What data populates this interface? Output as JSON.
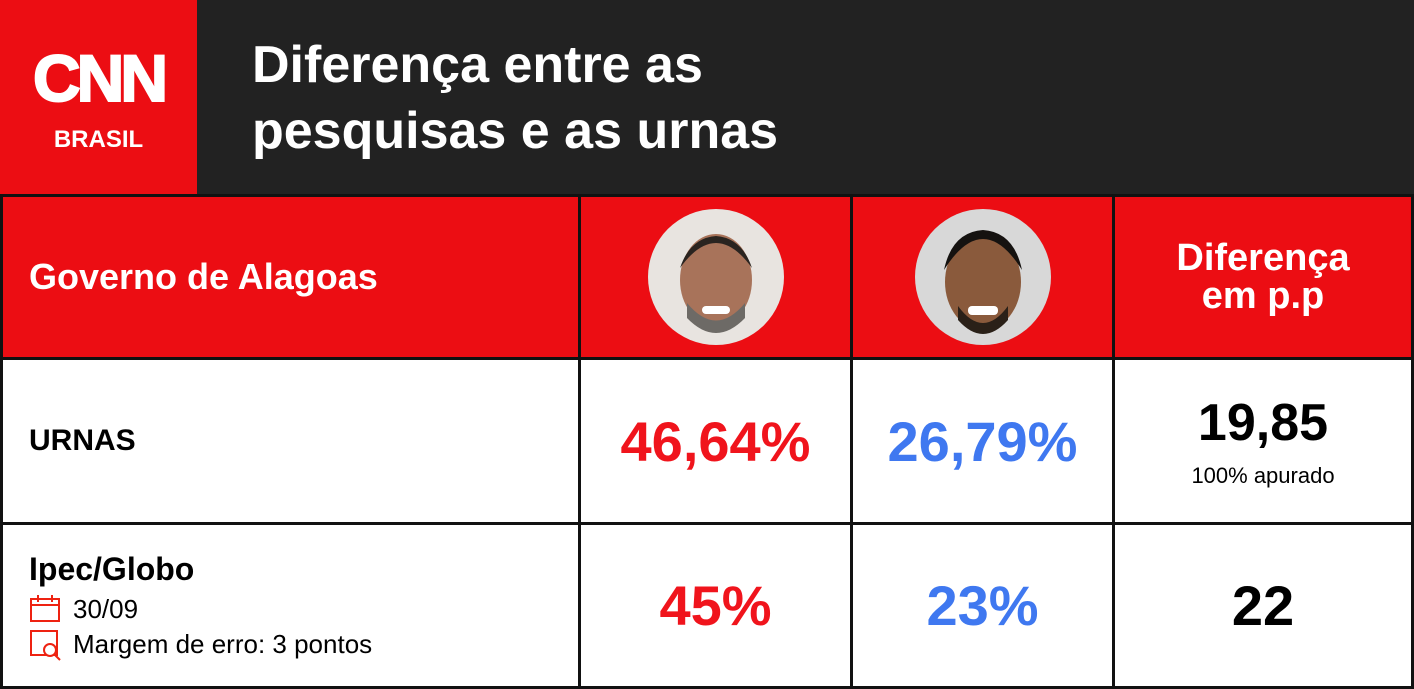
{
  "header": {
    "logo": {
      "brand": "CNN",
      "region": "BRASIL"
    },
    "title_lines": [
      "Diferença entre as",
      "pesquisas e as urnas"
    ]
  },
  "table": {
    "header": {
      "label": "Governo de Alagoas",
      "difference_lines": [
        "Diferença",
        "em p.p"
      ]
    },
    "rows": [
      {
        "label": "URNAS",
        "candidate_1": "46,64%",
        "candidate_2": "26,79%",
        "difference": "19,85",
        "note": "100% apurado"
      },
      {
        "label": "Ipec/Globo",
        "date": "30/09",
        "margin": "Margem de erro: 3 pontos",
        "candidate_1": "45%",
        "candidate_2": "23%",
        "difference": "22"
      }
    ]
  }
}
